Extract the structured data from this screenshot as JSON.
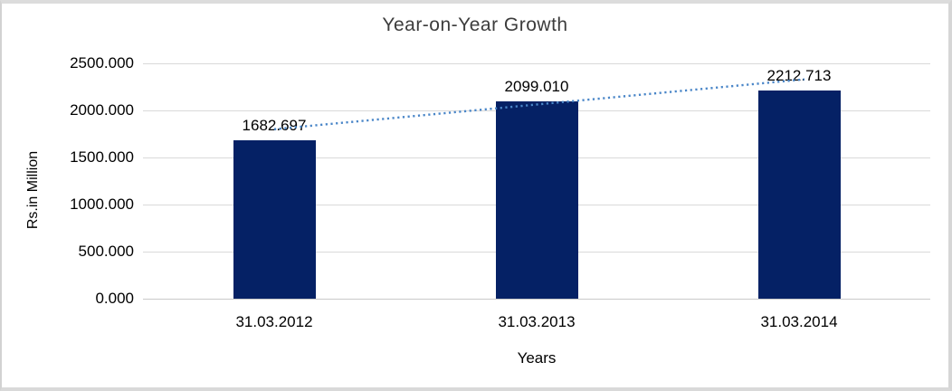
{
  "chart_data": {
    "type": "bar",
    "title": "Year-on-Year Growth",
    "xlabel": "Years",
    "ylabel": "Rs.in Million",
    "categories": [
      "31.03.2012",
      "31.03.2013",
      "31.03.2014"
    ],
    "values": [
      1682.697,
      2099.01,
      2212.713
    ],
    "data_labels": [
      "1682.697",
      "2099.010",
      "2212.713"
    ],
    "ylim": [
      0,
      2500
    ],
    "ytick_interval": 500,
    "ytick_labels_top_to_bottom": [
      "2500.000",
      "2000.000",
      "1500.000",
      "1000.000",
      "500.000",
      "0.000"
    ],
    "grid": true,
    "legend": "none",
    "trendline": {
      "type": "linear",
      "style": "dotted"
    },
    "colors": {
      "bar": "#052165",
      "trendline": "#4a86c8",
      "gridline": "#d9d9d9",
      "axis_line": "#c9c9c9",
      "text": "#000000",
      "title_text": "#3c3c3c",
      "frame_border": "#d9d9d9",
      "background": "#ffffff"
    }
  }
}
